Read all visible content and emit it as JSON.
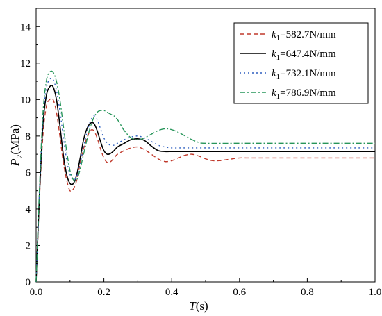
{
  "chart_data": {
    "type": "line",
    "xlabel": {
      "italic": "T",
      "rest": "(s)"
    },
    "ylabel": {
      "italic": "P",
      "sub": "2",
      "rest": "(MPa)"
    },
    "xlim": [
      0.0,
      1.0
    ],
    "ylim": [
      0,
      15
    ],
    "xticks": [
      "0.0",
      "0.2",
      "0.4",
      "0.6",
      "0.8",
      "1.0"
    ],
    "yticks": [
      "0",
      "2",
      "4",
      "6",
      "8",
      "10",
      "12",
      "14"
    ],
    "legend_position": "top-right",
    "series": [
      {
        "name": "k1=582.7N/mm",
        "label_var": "k",
        "label_sub": "1",
        "label_rest": "=582.7N/mm",
        "color": "#c0392b",
        "dash": "6,4",
        "x": [
          0,
          0.01,
          0.02,
          0.03,
          0.04,
          0.05,
          0.06,
          0.07,
          0.08,
          0.09,
          0.1,
          0.11,
          0.12,
          0.13,
          0.14,
          0.15,
          0.16,
          0.17,
          0.18,
          0.19,
          0.2,
          0.21,
          0.22,
          0.23,
          0.24,
          0.26,
          0.28,
          0.3,
          0.32,
          0.34,
          0.36,
          0.38,
          0.4,
          0.42,
          0.44,
          0.46,
          0.48,
          0.5,
          0.52,
          0.54,
          0.56,
          0.58,
          0.6,
          0.62,
          0.65,
          0.7,
          0.8,
          0.9,
          1.0
        ],
        "y": [
          0,
          4.6,
          8.0,
          9.6,
          10.0,
          10.0,
          9.3,
          8.0,
          6.6,
          5.6,
          5.0,
          5.1,
          5.6,
          6.5,
          7.3,
          7.9,
          8.3,
          8.3,
          7.9,
          7.3,
          6.8,
          6.55,
          6.6,
          6.8,
          7.0,
          7.2,
          7.35,
          7.4,
          7.25,
          7.0,
          6.75,
          6.6,
          6.65,
          6.8,
          6.95,
          7.0,
          6.9,
          6.75,
          6.65,
          6.65,
          6.7,
          6.75,
          6.8,
          6.8,
          6.8,
          6.8,
          6.8,
          6.8,
          6.8
        ]
      },
      {
        "name": "k1=647.4N/mm",
        "label_var": "k",
        "label_sub": "1",
        "label_rest": "=647.4N/mm",
        "color": "#000000",
        "dash": "",
        "x": [
          0,
          0.01,
          0.02,
          0.03,
          0.04,
          0.05,
          0.06,
          0.07,
          0.08,
          0.09,
          0.1,
          0.11,
          0.12,
          0.13,
          0.14,
          0.15,
          0.16,
          0.17,
          0.18,
          0.19,
          0.2,
          0.21,
          0.22,
          0.23,
          0.24,
          0.26,
          0.28,
          0.3,
          0.32,
          0.34,
          0.36,
          0.38,
          0.4,
          0.42,
          0.44,
          0.46,
          0.48,
          0.5,
          0.6,
          0.7,
          0.8,
          0.9,
          1.0
        ],
        "y": [
          0,
          4.8,
          8.6,
          10.2,
          10.7,
          10.7,
          10.0,
          8.6,
          7.0,
          5.9,
          5.4,
          5.4,
          5.9,
          6.8,
          7.8,
          8.4,
          8.7,
          8.7,
          8.3,
          7.7,
          7.2,
          7.0,
          7.05,
          7.2,
          7.4,
          7.6,
          7.8,
          7.85,
          7.75,
          7.45,
          7.2,
          7.15,
          7.15,
          7.15,
          7.15,
          7.15,
          7.15,
          7.15,
          7.15,
          7.15,
          7.15,
          7.15,
          7.15
        ]
      },
      {
        "name": "k1=732.1N/mm",
        "label_var": "k",
        "label_sub": "1",
        "label_rest": "=732.1N/mm",
        "color": "#2e5fbf",
        "dash": "2,4",
        "x": [
          0,
          0.01,
          0.02,
          0.03,
          0.04,
          0.05,
          0.06,
          0.07,
          0.08,
          0.09,
          0.1,
          0.11,
          0.12,
          0.13,
          0.14,
          0.15,
          0.16,
          0.17,
          0.18,
          0.19,
          0.2,
          0.21,
          0.22,
          0.23,
          0.24,
          0.26,
          0.28,
          0.3,
          0.32,
          0.34,
          0.36,
          0.38,
          0.4,
          0.42,
          0.44,
          0.46,
          0.5,
          0.6,
          0.7,
          0.8,
          0.9,
          1.0
        ],
        "y": [
          0,
          5.0,
          8.9,
          10.6,
          11.1,
          11.1,
          10.5,
          9.4,
          8.0,
          6.7,
          5.9,
          5.6,
          5.8,
          6.5,
          7.4,
          8.2,
          8.8,
          9.1,
          8.9,
          8.4,
          7.9,
          7.6,
          7.5,
          7.5,
          7.6,
          7.8,
          7.95,
          8.0,
          7.9,
          7.7,
          7.5,
          7.4,
          7.35,
          7.35,
          7.35,
          7.35,
          7.35,
          7.35,
          7.35,
          7.35,
          7.35,
          7.35
        ]
      },
      {
        "name": "k1=786.9N/mm",
        "label_var": "k",
        "label_sub": "1",
        "label_rest": "=786.9N/mm",
        "color": "#27955a",
        "dash": "8,3,2,3",
        "x": [
          0,
          0.01,
          0.02,
          0.03,
          0.04,
          0.05,
          0.06,
          0.07,
          0.08,
          0.09,
          0.1,
          0.11,
          0.12,
          0.13,
          0.14,
          0.15,
          0.16,
          0.17,
          0.18,
          0.19,
          0.2,
          0.21,
          0.22,
          0.23,
          0.24,
          0.25,
          0.26,
          0.28,
          0.3,
          0.32,
          0.34,
          0.36,
          0.38,
          0.4,
          0.42,
          0.44,
          0.46,
          0.48,
          0.5,
          0.6,
          0.7,
          0.8,
          0.9,
          1.0
        ],
        "y": [
          0,
          5.2,
          9.2,
          11.0,
          11.5,
          11.5,
          11.0,
          10.0,
          8.6,
          7.2,
          6.1,
          5.6,
          5.6,
          6.2,
          7.0,
          7.8,
          8.5,
          9.0,
          9.3,
          9.4,
          9.4,
          9.3,
          9.2,
          9.1,
          8.9,
          8.6,
          8.3,
          7.9,
          7.8,
          7.9,
          8.1,
          8.3,
          8.4,
          8.35,
          8.2,
          8.0,
          7.8,
          7.65,
          7.6,
          7.6,
          7.6,
          7.6,
          7.6,
          7.6
        ]
      }
    ]
  }
}
